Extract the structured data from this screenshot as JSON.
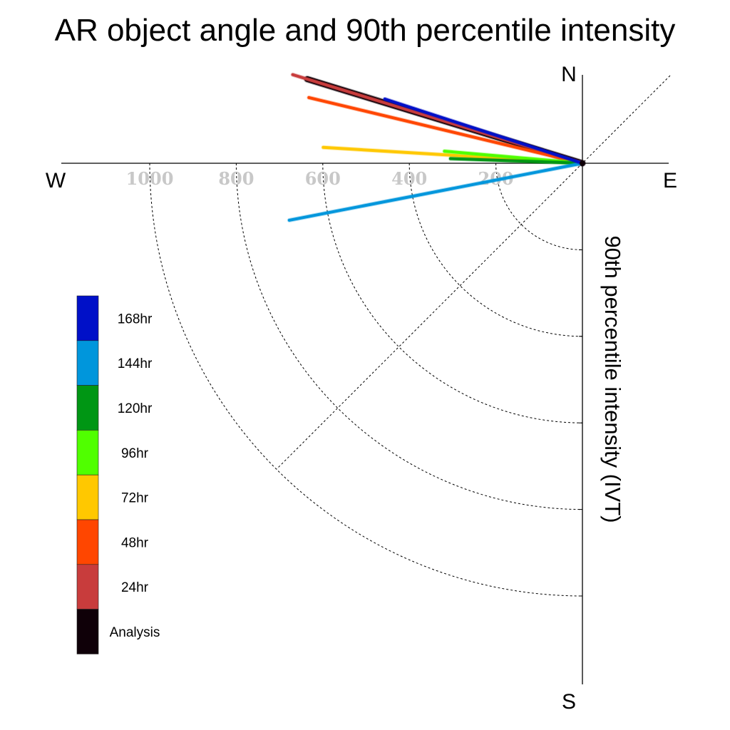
{
  "chart_data": {
    "type": "polar-line",
    "title": "AR object angle and 90th percentile intensity",
    "radial_label": "90th percentile intensity (IVT)",
    "compass": {
      "north": "N",
      "south": "S",
      "east": "E",
      "west": "W"
    },
    "radial_ticks": [
      200,
      400,
      600,
      800,
      1000
    ],
    "radial_tick_labels": [
      "200",
      "400",
      "600",
      "800",
      "1000"
    ],
    "angle_convention": "degrees counterclockwise from west toward north",
    "series": [
      {
        "name": "168hr",
        "color": "#0010c8",
        "angle": 18,
        "intensity": 480
      },
      {
        "name": "144hr",
        "color": "#0096dc",
        "angle": -11,
        "intensity": 690
      },
      {
        "name": "120hr",
        "color": "#009614",
        "angle": 2,
        "intensity": 305
      },
      {
        "name": "96hr",
        "color": "#50ff00",
        "angle": 5,
        "intensity": 320
      },
      {
        "name": "72hr",
        "color": "#ffc800",
        "angle": 3.5,
        "intensity": 600
      },
      {
        "name": "48hr",
        "color": "#ff4600",
        "angle": 13.5,
        "intensity": 650
      },
      {
        "name": "24hr",
        "color": "#c83c3c",
        "angle": 17,
        "intensity": 700
      },
      {
        "name": "Analysis",
        "color": "#0f0008",
        "angle": 17,
        "intensity": 665
      }
    ]
  }
}
